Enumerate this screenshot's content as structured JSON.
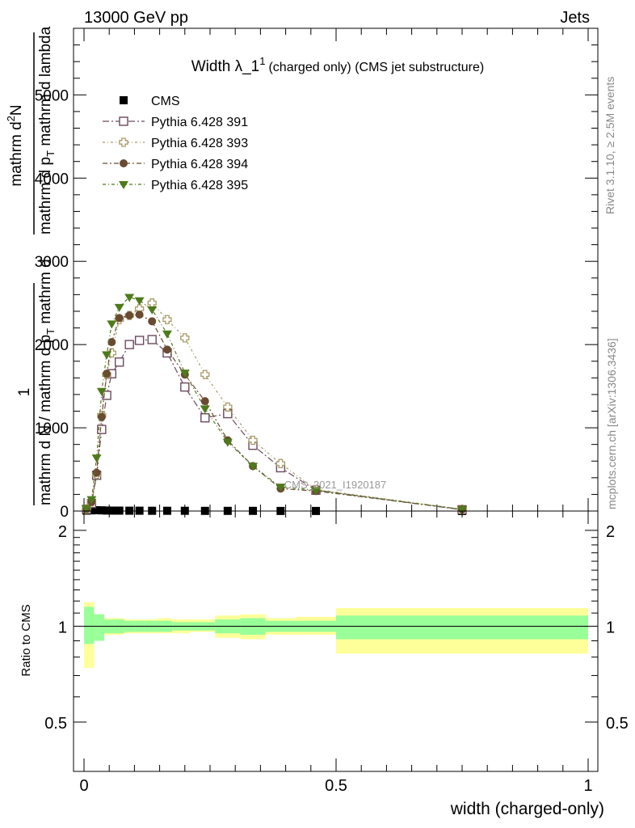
{
  "header": {
    "left": "13000 GeV pp",
    "right": "Jets"
  },
  "side_labels": {
    "rivet": "Rivet 3.1.10, ≥ 2.5M events",
    "mcplots": "mcplots.cern.ch [arXiv:1306.3436]"
  },
  "watermark": "CMS_2021_I1920187",
  "chart_data": [
    {
      "type": "line",
      "title_main": "Width λ_1",
      "title_sup": "1",
      "title_rest": "(charged only) (CMS jet substructure)",
      "ylabel_top": "mathrm d",
      "ylabel_sup": "2",
      "ylabel_top2": "N",
      "ylabel_bottom": "mathrm d p",
      "ylabel_bottom_sub": "T",
      "ylabel_bottom2": " mathrm d lambda",
      "ylabel_frac_top": "1",
      "ylabel_frac_bottom": "mathrm d N / mathrm d p",
      "ylabel_frac_bottom_sub": "T",
      "ylabel_frac_bottom2": " mathrm d",
      "xlim": [
        0,
        1
      ],
      "ylim": [
        0,
        5800
      ],
      "y_ticks": [
        0,
        1000,
        2000,
        3000,
        4000,
        5000
      ],
      "y_tick_labels": [
        "0",
        "1000",
        "2000",
        "3000",
        "4000",
        "5000"
      ],
      "legend_position": "top-left",
      "x": [
        0.005,
        0.015,
        0.025,
        0.035,
        0.045,
        0.055,
        0.07,
        0.09,
        0.11,
        0.135,
        0.165,
        0.2,
        0.24,
        0.285,
        0.335,
        0.39,
        0.46,
        0.75
      ],
      "series": [
        {
          "name": "CMS",
          "color": "#000000",
          "marker": "filled-square",
          "values": [
            5,
            8,
            10,
            8,
            6,
            5,
            5,
            4,
            4,
            3,
            3,
            3,
            2,
            2,
            2,
            1,
            1,
            0
          ]
        },
        {
          "name": "Pythia 6.428 391",
          "color": "#6b4a5e",
          "marker": "open-square",
          "values": [
            20,
            90,
            430,
            980,
            1390,
            1650,
            1790,
            2000,
            2050,
            2060,
            1900,
            1490,
            1120,
            1170,
            790,
            520,
            250,
            15
          ]
        },
        {
          "name": "Pythia 6.428 393",
          "color": "#a89a68",
          "marker": "open-cross",
          "values": [
            25,
            110,
            440,
            1150,
            1640,
            1900,
            2300,
            2350,
            2430,
            2500,
            2300,
            2080,
            1640,
            1250,
            850,
            570,
            260,
            20
          ]
        },
        {
          "name": "Pythia 6.428 394",
          "color": "#6b4a32",
          "marker": "filled-circle",
          "values": [
            25,
            110,
            460,
            1130,
            1650,
            2030,
            2320,
            2350,
            2360,
            2280,
            1940,
            1640,
            1320,
            850,
            540,
            270,
            240,
            20
          ]
        },
        {
          "name": "Pythia 6.428 395",
          "color": "#4f7a1c",
          "marker": "filled-triangle-down",
          "values": [
            30,
            140,
            640,
            1440,
            1880,
            2250,
            2450,
            2570,
            2530,
            2420,
            2130,
            1660,
            1230,
            830,
            540,
            290,
            250,
            20
          ]
        }
      ]
    },
    {
      "type": "area",
      "ylabel": "Ratio to CMS",
      "xlabel": "width (charged-only)",
      "xlim": [
        0,
        1
      ],
      "ylim": [
        0.35,
        2.3
      ],
      "x_ticks": [
        0,
        0.5,
        1
      ],
      "x_tick_labels": [
        "0",
        "0.5",
        "1"
      ],
      "y_ticks": [
        0.5,
        1,
        2
      ],
      "y_tick_labels": [
        "0.5",
        "1",
        "2"
      ],
      "bins": [
        0.0,
        0.02,
        0.04,
        0.06,
        0.08,
        0.1,
        0.12,
        0.145,
        0.175,
        0.21,
        0.26,
        0.31,
        0.36,
        0.42,
        0.5,
        1.0
      ],
      "green_band": [
        [
          0.88,
          1.15
        ],
        [
          0.9,
          1.09
        ],
        [
          0.95,
          1.05
        ],
        [
          0.95,
          1.05
        ],
        [
          0.96,
          1.04
        ],
        [
          0.96,
          1.04
        ],
        [
          0.96,
          1.04
        ],
        [
          0.96,
          1.04
        ],
        [
          0.97,
          1.03
        ],
        [
          0.97,
          1.03
        ],
        [
          0.95,
          1.05
        ],
        [
          0.94,
          1.06
        ],
        [
          0.96,
          1.04
        ],
        [
          0.96,
          1.04
        ],
        [
          0.91,
          1.08
        ],
        [
          0.91,
          1.08
        ]
      ],
      "yellow_band": [
        [
          0.74,
          1.19
        ],
        [
          0.9,
          1.09
        ],
        [
          0.94,
          1.06
        ],
        [
          0.94,
          1.06
        ],
        [
          0.95,
          1.05
        ],
        [
          0.95,
          1.05
        ],
        [
          0.95,
          1.05
        ],
        [
          0.95,
          1.06
        ],
        [
          0.95,
          1.05
        ],
        [
          0.96,
          1.05
        ],
        [
          0.92,
          1.08
        ],
        [
          0.91,
          1.09
        ],
        [
          0.94,
          1.06
        ],
        [
          0.94,
          1.07
        ],
        [
          0.82,
          1.14
        ],
        [
          0.82,
          1.14
        ]
      ],
      "green_color": "#99ff99",
      "yellow_color": "#ffff99"
    }
  ]
}
